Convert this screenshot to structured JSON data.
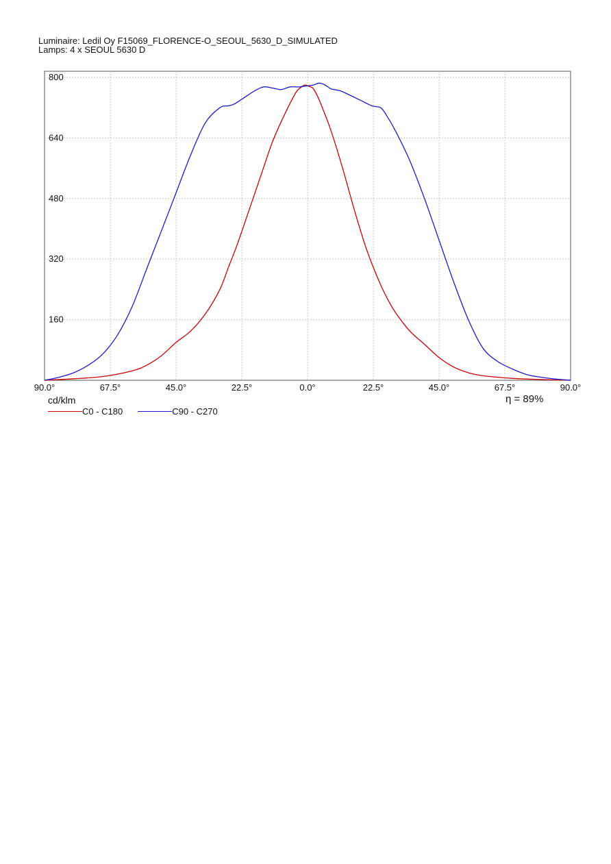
{
  "header": {
    "luminaire": "Luminaire: Ledil Oy F15069_FLORENCE-O_SEOUL_5630_D_SIMULATED",
    "lamps": "Lamps: 4 x SEOUL 5630 D"
  },
  "unit_label": "cd/klm",
  "efficiency_label": "η = 89%",
  "chart_data": {
    "type": "line",
    "title": "",
    "xlabel": "",
    "ylabel": "cd/klm",
    "x_tick_labels": [
      "90.0°",
      "67.5°",
      "45.0°",
      "22.5°",
      "0.0°",
      "22.5°",
      "45.0°",
      "67.5°",
      "90.0°"
    ],
    "y_ticks": [
      160,
      320,
      480,
      640,
      800
    ],
    "xlim": [
      -90,
      90
    ],
    "ylim": [
      0,
      800
    ],
    "grid": true,
    "legend": "bottom-left",
    "series": [
      {
        "name": "C0 - C180",
        "color": "#cc0000",
        "x": [
          -90,
          -80,
          -70,
          -60,
          -55,
          -50,
          -45,
          -40,
          -35,
          -30,
          -27,
          -24,
          -20,
          -16,
          -12,
          -8,
          -4,
          -2,
          -1,
          0,
          1,
          2,
          4,
          8,
          12,
          16,
          20,
          24,
          27,
          30,
          35,
          40,
          45,
          50,
          55,
          60,
          70,
          80,
          90
        ],
        "y": [
          0,
          4,
          10,
          25,
          40,
          65,
          100,
          130,
          175,
          240,
          300,
          360,
          450,
          540,
          630,
          700,
          760,
          775,
          780,
          778,
          775,
          770,
          740,
          660,
          560,
          450,
          350,
          270,
          220,
          180,
          130,
          95,
          60,
          35,
          20,
          12,
          5,
          2,
          0
        ]
      },
      {
        "name": "C90 - C270",
        "color": "#1a1acc",
        "x": [
          -90,
          -85,
          -80,
          -75,
          -70,
          -65,
          -60,
          -55,
          -50,
          -45,
          -40,
          -35,
          -30,
          -27,
          -25,
          -22,
          -18,
          -15,
          -12,
          -9,
          -6,
          -3,
          0,
          2,
          4,
          6,
          8,
          11,
          14,
          18,
          22,
          25,
          27,
          30,
          35,
          40,
          45,
          50,
          55,
          60,
          65,
          70,
          75,
          80,
          85,
          90
        ],
        "y": [
          0,
          8,
          20,
          40,
          70,
          120,
          195,
          295,
          395,
          495,
          595,
          680,
          720,
          725,
          730,
          745,
          765,
          775,
          772,
          768,
          775,
          775,
          778,
          780,
          785,
          780,
          770,
          765,
          755,
          740,
          725,
          720,
          700,
          660,
          580,
          480,
          370,
          260,
          160,
          85,
          50,
          30,
          15,
          8,
          3,
          0
        ]
      }
    ]
  }
}
